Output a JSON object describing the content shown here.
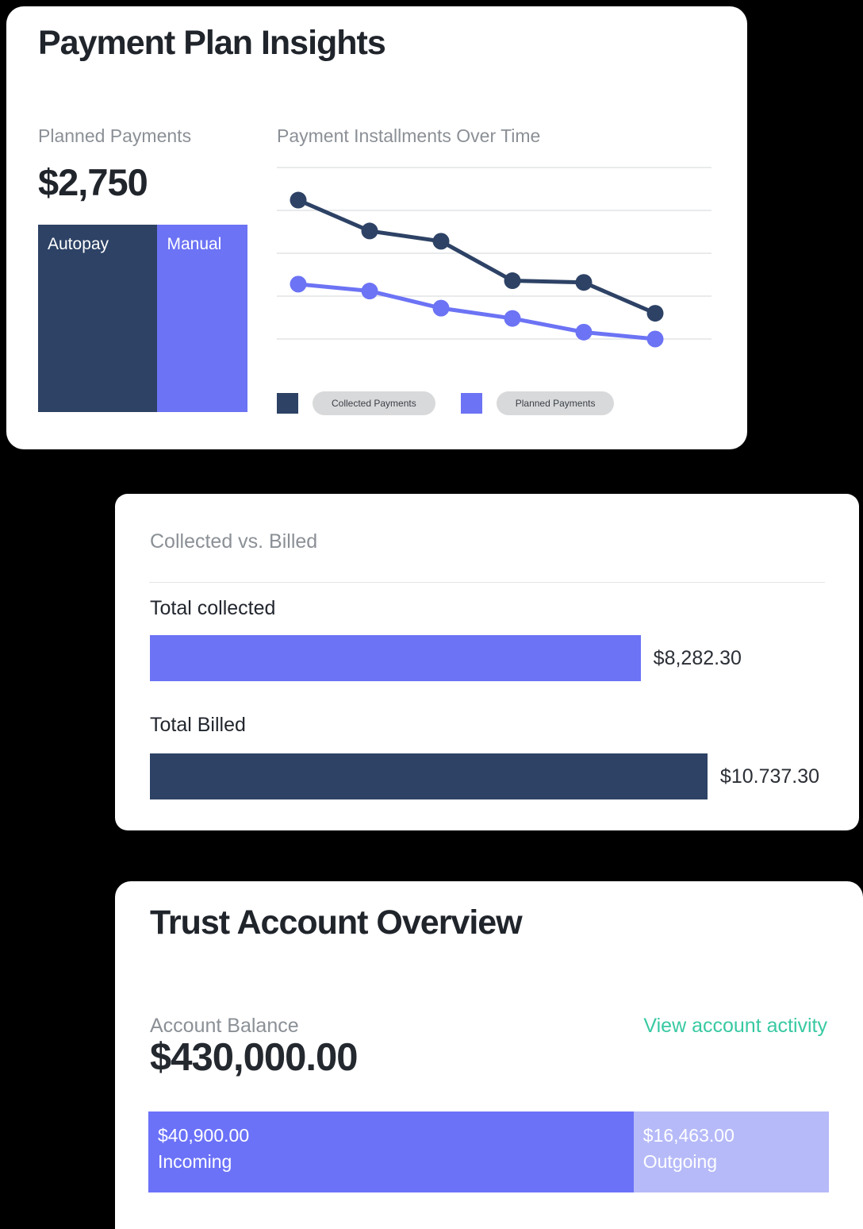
{
  "payment_plan": {
    "title": "Payment Plan Insights",
    "planned_label": "Planned Payments",
    "planned_amount": "$2,750",
    "chart_title": "Payment Installments Over Time",
    "legend_collected": "Collected Payments",
    "legend_planned": "Planned Payments",
    "autopay_label": "Autopay",
    "manual_label": "Manual"
  },
  "collected_billed": {
    "title": "Collected vs. Billed",
    "collected_label": "Total collected",
    "collected_value": "$8,282.30",
    "billed_label": "Total Billed",
    "billed_value": "$10.737.30"
  },
  "trust": {
    "title": "Trust Account Overview",
    "balance_label": "Account Balance",
    "activity_link": "View account activity",
    "balance_value": "$430,000.00",
    "incoming_value": "$40,900.00",
    "incoming_label": "Incoming",
    "outgoing_value": "$16,463.00",
    "outgoing_label": "Outgoing"
  },
  "colors": {
    "navy": "#2d4265",
    "purple": "#6c73f4",
    "incoming_purple": "#6b72f8",
    "outgoing_purple": "#b6baf8",
    "gridline": "#e2e3e5",
    "teal_link": "#38c9a2",
    "chip_bg": "#d8d9da"
  },
  "chart_data": [
    {
      "type": "bar",
      "subtype": "stacked-horizontal",
      "title": "Planned Payments",
      "total_label": "$2,750",
      "segments": [
        {
          "label": "Autopay",
          "percent": 57,
          "color": "#2d4265"
        },
        {
          "label": "Manual",
          "percent": 43,
          "color": "#6c73f4"
        }
      ]
    },
    {
      "type": "line",
      "title": "Payment Installments Over Time",
      "x": [
        1,
        2,
        3,
        4,
        5,
        6
      ],
      "ylim": [
        0,
        100
      ],
      "grid": true,
      "gridline_count": 5,
      "legend_position": "bottom",
      "series": [
        {
          "name": "Collected Payments",
          "color": "#2d4265",
          "values": [
            81,
            63,
            57,
            34,
            33,
            15
          ]
        },
        {
          "name": "Planned Payments",
          "color": "#6c73f4",
          "values": [
            32,
            28,
            18,
            12,
            4,
            0
          ]
        }
      ]
    },
    {
      "type": "bar",
      "subtype": "horizontal",
      "title": "Collected vs. Billed",
      "categories": [
        "Total collected",
        "Total Billed"
      ],
      "values": [
        8282.3,
        10737.3
      ],
      "value_labels": [
        "$8,282.30",
        "$10.737.30"
      ],
      "colors": [
        "#6c73f4",
        "#2d4265"
      ],
      "bar_percent": [
        72.7,
        82.6
      ]
    },
    {
      "type": "bar",
      "subtype": "stacked-horizontal",
      "title": "Trust Account Overview",
      "segments": [
        {
          "label": "Incoming",
          "value": 40900.0,
          "value_label": "$40,900.00",
          "percent": 71.3,
          "color": "#6b72f8"
        },
        {
          "label": "Outgoing",
          "value": 16463.0,
          "value_label": "$16,463.00",
          "percent": 28.7,
          "color": "#b6baf8"
        }
      ]
    }
  ]
}
